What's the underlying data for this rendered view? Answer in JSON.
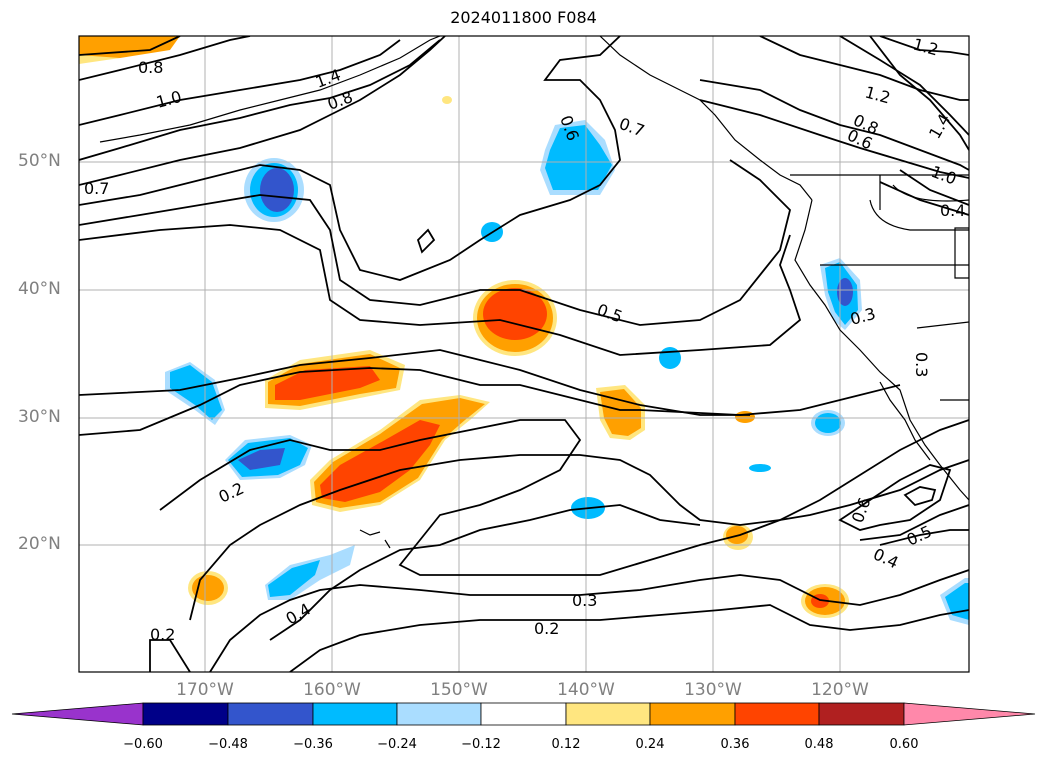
{
  "title": "2024011800 F084",
  "lat_labels": [
    "50°N",
    "40°N",
    "30°N",
    "20°N"
  ],
  "lon_labels": [
    "170°W",
    "160°W",
    "150°W",
    "140°W",
    "130°W",
    "120°W"
  ],
  "colorbar": {
    "ticks": [
      "−0.60",
      "−0.48",
      "−0.36",
      "−0.24",
      "−0.12",
      "0.12",
      "0.24",
      "0.36",
      "0.48",
      "0.60"
    ],
    "colors": [
      "#9933cc",
      "#000088",
      "#3355cc",
      "#00bbff",
      "#aaddff",
      "#ffffff",
      "#ffe680",
      "#ffa000",
      "#ff4400",
      "#b02020",
      "#ff88aa"
    ]
  },
  "contour_labels": [
    "0.8",
    "1.0",
    "1.4",
    "0.8",
    "0.7",
    "0.6",
    "0.7",
    "1.2",
    "1.2",
    "0.8",
    "0.6",
    "1.4",
    "1.0",
    "0.4",
    "0.5",
    "0.3",
    "0.3",
    "0.2",
    "0.4",
    "0.2",
    "0.3",
    "0.2",
    "0.6",
    "0.5",
    "0.4"
  ],
  "colors": {
    "fill_neg_strong": "#3355cc",
    "fill_neg": "#00bbff",
    "fill_neg_light": "#aaddff",
    "fill_pos_light": "#ffe680",
    "fill_pos": "#ffa000",
    "fill_pos_strong": "#ff4400",
    "fill_pos_max": "#b02020"
  }
}
